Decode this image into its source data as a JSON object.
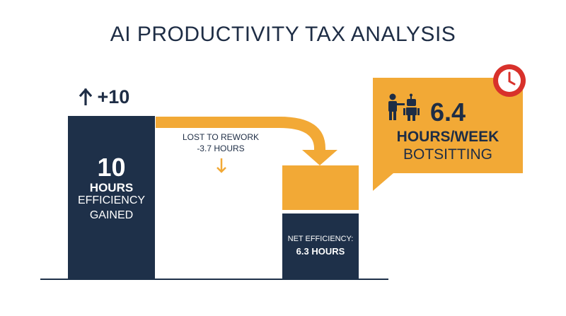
{
  "title": "AI PRODUCTIVITY TAX ANALYSIS",
  "gain": {
    "label": "+10",
    "icon": "arrow-up-icon"
  },
  "left_bar": {
    "value": "10",
    "unit": "HOURS",
    "line1": "EFFICIENCY",
    "line2": "GAINED"
  },
  "rework": {
    "line1": "LOST TO REWORK",
    "line2": "-3.7 HOURS",
    "icon": "arrow-down-icon"
  },
  "net": {
    "line1": "NET EFFICIENCY:",
    "line2": "6.3 HOURS"
  },
  "callout": {
    "value": "6.4",
    "unit": "HOURS/WEEK",
    "label": "BOTSITTING",
    "icons": [
      "person-robot-icon",
      "clock-icon"
    ]
  },
  "colors": {
    "navy": "#1e3049",
    "orange": "#f2a936",
    "red": "#d8312b"
  }
}
